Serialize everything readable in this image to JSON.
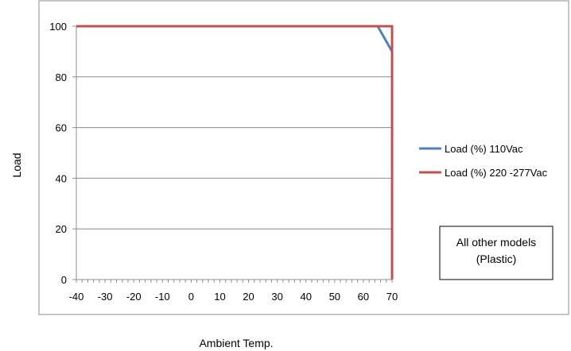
{
  "chart_data": {
    "type": "line",
    "xlabel": "Ambient Temp.",
    "ylabel": "Load",
    "xlim": [
      -40,
      70
    ],
    "ylim": [
      0,
      100
    ],
    "x_ticks": [
      -40,
      -30,
      -20,
      -10,
      0,
      10,
      20,
      30,
      40,
      50,
      60,
      70
    ],
    "y_ticks": [
      0,
      20,
      40,
      60,
      80,
      100
    ],
    "grid": "horizontal",
    "legend_position": "right",
    "series": [
      {
        "name": "Load (%) 110Vac",
        "color": "#4f81bd",
        "points": [
          [
            -40,
            100
          ],
          [
            65,
            100
          ],
          [
            70,
            90
          ]
        ]
      },
      {
        "name": "Load (%) 220 -277Vac",
        "color": "#c0504d",
        "points": [
          [
            -40,
            100
          ],
          [
            70,
            100
          ],
          [
            70,
            0
          ]
        ]
      }
    ],
    "annotation": {
      "line1": "All other models",
      "line2": "(Plastic)"
    }
  }
}
